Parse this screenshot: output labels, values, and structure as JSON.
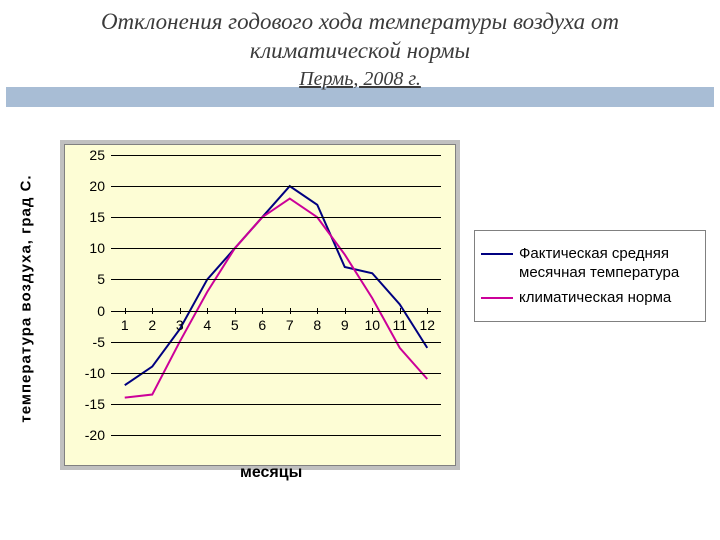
{
  "title": "Отклонения годового хода температуры воздуха от климатической нормы",
  "subtitle": "Пермь, 2008 г.",
  "y_axis_label": "температура воздуха, град С.",
  "x_axis_label": "месяцы",
  "chart": {
    "type": "line",
    "background_color": "#fdfdd5",
    "grid_color": "#000000",
    "ylim": [
      -20,
      25
    ],
    "ytick_step": 5,
    "y_ticks": [
      25,
      20,
      15,
      10,
      5,
      0,
      -5,
      -10,
      -15,
      -20
    ],
    "x_categories": [
      1,
      2,
      3,
      4,
      5,
      6,
      7,
      8,
      9,
      10,
      11,
      12
    ],
    "series": [
      {
        "name": "Фактическая средняя месячная температура",
        "color": "#000080",
        "line_width": 2,
        "values": [
          -12,
          -9,
          -3,
          5,
          10,
          15,
          20,
          17,
          7,
          6,
          1,
          -6
        ]
      },
      {
        "name": "климатическая норма",
        "color": "#cc0099",
        "line_width": 2,
        "values": [
          -14,
          -13.5,
          -5,
          3,
          10,
          15,
          18,
          15,
          9,
          2,
          -6,
          -11
        ]
      }
    ]
  },
  "legend_items": [
    {
      "label": "Фактическая средняя месячная температура",
      "color": "#000080"
    },
    {
      "label": "климатическая норма",
      "color": "#cc0099"
    }
  ],
  "fonts": {
    "title_fontsize": 23,
    "subtitle_fontsize": 20,
    "axis_label_fontsize": 15,
    "tick_fontsize": 14,
    "legend_fontsize": 15
  }
}
